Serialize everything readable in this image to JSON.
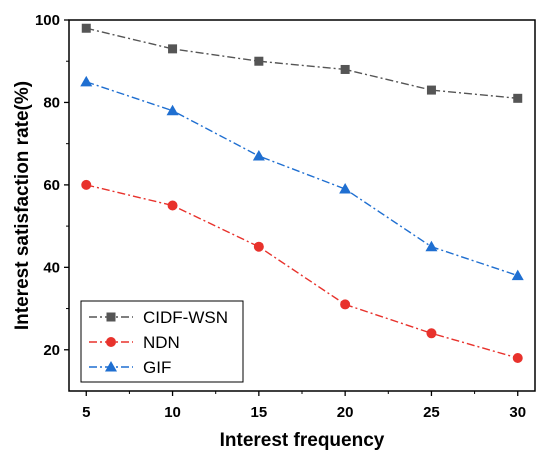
{
  "chart_data": {
    "type": "line",
    "title": "",
    "xlabel": "Interest frequency",
    "ylabel": "Interest satisfaction rate(%)",
    "x": [
      5,
      10,
      15,
      20,
      25,
      30
    ],
    "xlim": [
      4,
      31
    ],
    "ylim": [
      10,
      100
    ],
    "x_ticks": [
      5,
      10,
      15,
      20,
      25,
      30
    ],
    "y_ticks": [
      20,
      40,
      60,
      80,
      100
    ],
    "grid": false,
    "legend_position": "bottom-left",
    "series": [
      {
        "name": "CIDF-WSN",
        "values": [
          98,
          93,
          90,
          88,
          83,
          81
        ],
        "color": "#555555",
        "marker": "square",
        "line_style": "dash-dot"
      },
      {
        "name": "NDN",
        "values": [
          60,
          55,
          45,
          31,
          24,
          18
        ],
        "color": "#e8322c",
        "marker": "circle",
        "line_style": "dash-dot"
      },
      {
        "name": "GIF",
        "values": [
          85,
          78,
          67,
          59,
          45,
          38
        ],
        "color": "#1f6fd1",
        "marker": "triangle",
        "line_style": "dash-dot"
      }
    ]
  }
}
